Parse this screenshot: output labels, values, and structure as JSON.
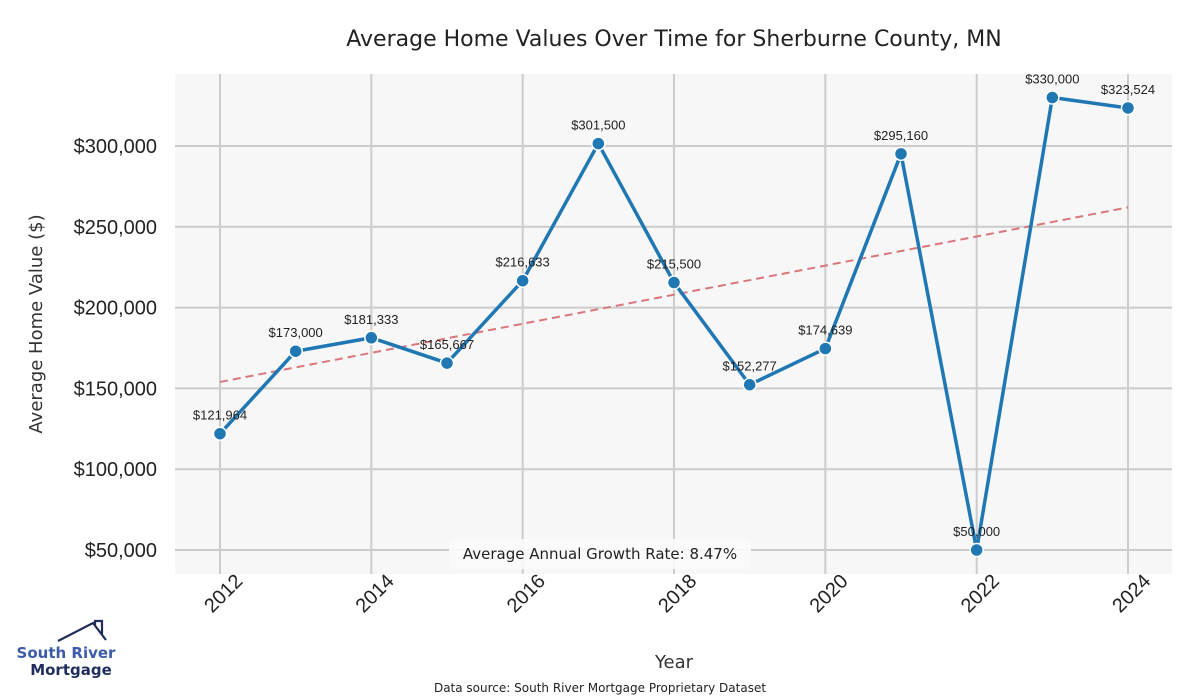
{
  "chart_data": {
    "type": "line",
    "title": "Average Home Values Over Time for Sherburne County, MN",
    "xlabel": "Year",
    "ylabel": "Average Home Value ($)",
    "x": [
      2012,
      2013,
      2014,
      2015,
      2016,
      2017,
      2018,
      2019,
      2020,
      2021,
      2022,
      2023,
      2024
    ],
    "series": [
      {
        "name": "Average Home Value",
        "color": "#1f77b4",
        "values": [
          121964,
          173000,
          181333,
          165667,
          216633,
          301500,
          215500,
          152277,
          174639,
          295160,
          50000,
          330000,
          323524
        ],
        "labels": [
          "$121,964",
          "$173,000",
          "$181,333",
          "$165,667",
          "$216,633",
          "$301,500",
          "$215,500",
          "$152,277",
          "$174,639",
          "$295,160",
          "$50,000",
          "$330,000",
          "$323,524"
        ]
      },
      {
        "name": "Trend",
        "color": "#d9777b",
        "style": "dashed",
        "x": [
          2012,
          2024
        ],
        "values": [
          154000,
          262000
        ]
      }
    ],
    "xticks": [
      2012,
      2014,
      2016,
      2018,
      2020,
      2022,
      2024
    ],
    "xtick_labels": [
      "2012",
      "2014",
      "2016",
      "2018",
      "2020",
      "2022",
      "2024"
    ],
    "yticks": [
      50000,
      100000,
      150000,
      200000,
      250000,
      300000
    ],
    "ytick_labels": [
      "$50,000",
      "$100,000",
      "$150,000",
      "$200,000",
      "$250,000",
      "$300,000"
    ],
    "xlim": [
      2011.7,
      2024.3
    ],
    "ylim": [
      35000,
      345000
    ],
    "grid": true,
    "annotation": "Average Annual Growth Rate: 8.47%",
    "source": "Data source: South River Mortgage Proprietary Dataset"
  },
  "logo": {
    "line1": "South River",
    "line2": "Mortgage"
  },
  "colors": {
    "plot_bg": "#f7f7f7",
    "grid": "#cccccc",
    "line": "#1f77b4",
    "trend": "#d9777b"
  }
}
